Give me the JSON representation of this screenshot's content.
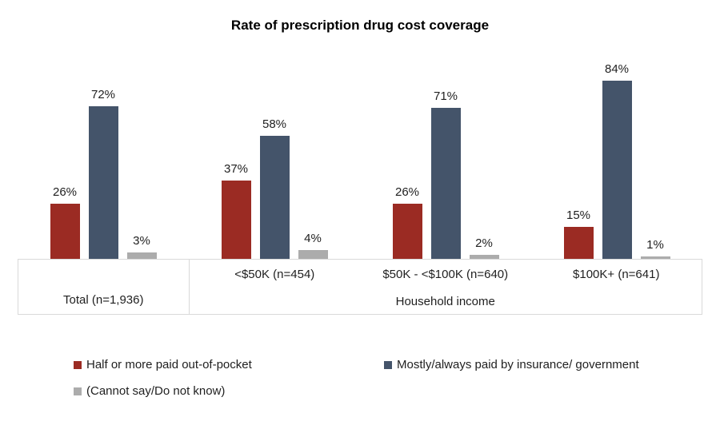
{
  "chart_data": {
    "type": "bar",
    "title": "Rate of prescription drug cost coverage",
    "categories": [
      "Total (n=1,936)",
      "<$50K (n=454)",
      "$50K - <$100K (n=640)",
      "$100K+ (n=641)"
    ],
    "axis": {
      "total_label": "Total (n=1,936)",
      "income_labels": [
        "<$50K (n=454)",
        "$50K - <$100K (n=640)",
        "$100K+ (n=641)"
      ],
      "section_label": "Household income"
    },
    "series": [
      {
        "name": "Half or more paid out-of-pocket",
        "color": "#9B2B23",
        "values": [
          26,
          37,
          26,
          15
        ]
      },
      {
        "name": "Mostly/always paid by insurance/ government",
        "color": "#44546A",
        "values": [
          72,
          58,
          71,
          84
        ]
      },
      {
        "name": "(Cannot say/Do not know)",
        "color": "#ACACAC",
        "values": [
          3,
          4,
          2,
          1
        ]
      }
    ],
    "value_label_suffix": "%",
    "ylim": [
      0,
      100
    ],
    "grid": false,
    "legend_position": "bottom",
    "axis_line_color": "#D9D9D9"
  }
}
